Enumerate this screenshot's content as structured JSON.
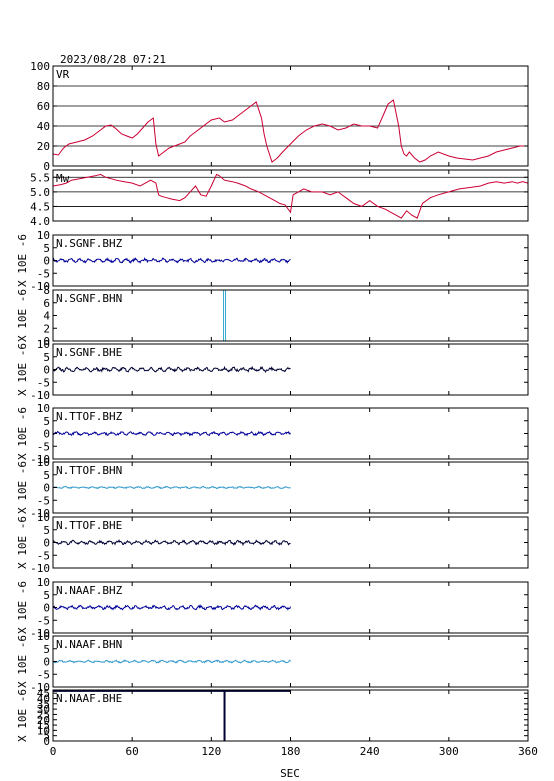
{
  "timestamp": "2023/08/28 07:21",
  "x_axis_label": "SEC",
  "chart_data": [
    {
      "type": "line",
      "panel_label": "VR",
      "line_color": "#cc0033",
      "xlim": [
        0,
        360
      ],
      "ylim": [
        0,
        100
      ],
      "yticks": [
        0,
        20,
        40,
        60,
        80,
        100
      ],
      "grid": true,
      "series": [
        {
          "x": [
            0,
            4,
            8,
            12,
            18,
            24,
            30,
            36,
            40,
            44,
            48,
            52,
            56,
            60,
            64,
            68,
            72,
            76,
            78,
            80,
            82,
            84,
            86,
            88,
            92,
            96,
            100,
            104,
            108,
            114,
            120,
            126,
            130,
            136,
            140,
            144,
            150,
            154,
            158,
            160,
            162,
            164,
            166,
            168,
            170,
            174,
            180,
            186,
            192,
            198,
            204,
            210,
            216,
            222,
            228,
            234,
            240,
            246,
            250,
            254,
            258,
            262,
            264,
            266,
            268,
            270,
            274,
            278,
            282,
            286,
            292,
            300,
            306,
            312,
            318,
            324,
            330,
            336,
            342,
            348,
            354,
            360
          ],
          "y": [
            12,
            11,
            18,
            22,
            24,
            26,
            30,
            36,
            40,
            41,
            37,
            32,
            30,
            28,
            32,
            38,
            44,
            48,
            22,
            10,
            12,
            14,
            16,
            18,
            20,
            22,
            24,
            30,
            34,
            40,
            46,
            48,
            44,
            46,
            50,
            54,
            60,
            64,
            48,
            32,
            20,
            12,
            4,
            6,
            8,
            14,
            22,
            30,
            36,
            40,
            42,
            40,
            36,
            38,
            42,
            40,
            40,
            38,
            50,
            62,
            66,
            40,
            20,
            12,
            10,
            14,
            8,
            4,
            6,
            10,
            14,
            10,
            8,
            7,
            6,
            8,
            10,
            14,
            16,
            18,
            20,
            20
          ]
        }
      ]
    },
    {
      "type": "line",
      "panel_label": "Mw",
      "line_color": "#cc0033",
      "xlim": [
        0,
        360
      ],
      "ylim": [
        4.0,
        5.75
      ],
      "yticks": [
        4.0,
        4.5,
        5.0,
        5.5
      ],
      "ytick_labels": [
        "4.0",
        "4.5",
        "5.0",
        "5.5"
      ],
      "grid": true,
      "series": [
        {
          "x": [
            0,
            6,
            10,
            14,
            20,
            26,
            32,
            36,
            40,
            44,
            48,
            54,
            60,
            66,
            70,
            74,
            78,
            80,
            82,
            86,
            90,
            96,
            100,
            104,
            108,
            112,
            116,
            120,
            124,
            126,
            130,
            136,
            140,
            146,
            150,
            156,
            160,
            164,
            168,
            172,
            176,
            180,
            182,
            186,
            190,
            196,
            204,
            210,
            216,
            222,
            228,
            234,
            240,
            246,
            252,
            256,
            260,
            264,
            268,
            272,
            276,
            280,
            286,
            292,
            300,
            308,
            316,
            324,
            330,
            336,
            342,
            348,
            352,
            356,
            360
          ],
          "y": [
            5.2,
            5.25,
            5.3,
            5.4,
            5.45,
            5.5,
            5.55,
            5.6,
            5.5,
            5.45,
            5.4,
            5.35,
            5.3,
            5.2,
            5.3,
            5.4,
            5.3,
            4.9,
            4.85,
            4.8,
            4.75,
            4.7,
            4.8,
            5.0,
            5.2,
            4.9,
            4.85,
            5.2,
            5.6,
            5.55,
            5.4,
            5.35,
            5.3,
            5.2,
            5.1,
            5.0,
            4.9,
            4.8,
            4.7,
            4.6,
            4.55,
            4.3,
            4.9,
            5.0,
            5.1,
            5.0,
            5.0,
            4.9,
            5.0,
            4.8,
            4.6,
            4.5,
            4.7,
            4.5,
            4.4,
            4.3,
            4.2,
            4.1,
            4.35,
            4.2,
            4.1,
            4.6,
            4.8,
            4.9,
            5.0,
            5.1,
            5.15,
            5.2,
            5.3,
            5.35,
            5.3,
            5.35,
            5.3,
            5.35,
            5.3
          ]
        }
      ]
    },
    {
      "type": "line",
      "panel_label": "N.SGNF.BHZ",
      "ylabel": "X 10E -6",
      "line_color": "#000099",
      "wave_type": "noise",
      "amplitude": 0.8,
      "xlim": [
        0,
        360
      ],
      "data_x_range": [
        0,
        180
      ],
      "ylim": [
        -10,
        10
      ],
      "yticks": [
        -10,
        -5,
        0,
        5,
        10
      ]
    },
    {
      "type": "line",
      "panel_label": "N.SGNF.BHN",
      "ylabel": "X 10E -6",
      "line_color": "#33aacc",
      "wave_type": "spike",
      "spike_x": 130,
      "spike_value": 8,
      "xlim": [
        0,
        360
      ],
      "ylim": [
        0,
        8
      ],
      "yticks": [
        0,
        2,
        4,
        6,
        8
      ]
    },
    {
      "type": "line",
      "panel_label": "N.SGNF.BHE",
      "ylabel": "X 10E -6",
      "line_color": "#000033",
      "wave_type": "noise",
      "amplitude": 0.9,
      "xlim": [
        0,
        360
      ],
      "data_x_range": [
        0,
        180
      ],
      "ylim": [
        -10,
        10
      ],
      "yticks": [
        -10,
        -5,
        0,
        5,
        10
      ]
    },
    {
      "type": "line",
      "panel_label": "N.TTOF.BHZ",
      "ylabel": "X 10E -6",
      "line_color": "#000099",
      "wave_type": "noise",
      "amplitude": 0.7,
      "xlim": [
        0,
        360
      ],
      "data_x_range": [
        0,
        180
      ],
      "ylim": [
        -10,
        10
      ],
      "yticks": [
        -10,
        -5,
        0,
        5,
        10
      ]
    },
    {
      "type": "line",
      "panel_label": "N.TTOF.BHN",
      "ylabel": "X 10E -6",
      "line_color": "#3399cc",
      "wave_type": "noise",
      "amplitude": 0.4,
      "xlim": [
        0,
        360
      ],
      "data_x_range": [
        0,
        180
      ],
      "ylim": [
        -10,
        10
      ],
      "yticks": [
        -10,
        -5,
        0,
        5,
        10
      ]
    },
    {
      "type": "line",
      "panel_label": "N.TTOF.BHE",
      "ylabel": "X 10E -6",
      "line_color": "#000033",
      "wave_type": "noise",
      "amplitude": 0.8,
      "xlim": [
        0,
        360
      ],
      "data_x_range": [
        0,
        180
      ],
      "ylim": [
        -10,
        10
      ],
      "yticks": [
        -10,
        -5,
        0,
        5,
        10
      ]
    },
    {
      "type": "line",
      "panel_label": "N.NAAF.BHZ",
      "ylabel": "X 10E -6",
      "line_color": "#000099",
      "wave_type": "noise",
      "amplitude": 0.8,
      "xlim": [
        0,
        360
      ],
      "data_x_range": [
        0,
        180
      ],
      "ylim": [
        -10,
        10
      ],
      "yticks": [
        -10,
        -5,
        0,
        5,
        10
      ]
    },
    {
      "type": "line",
      "panel_label": "N.NAAF.BHN",
      "ylabel": "X 10E -6",
      "line_color": "#3399cc",
      "wave_type": "noise",
      "amplitude": 0.5,
      "xlim": [
        0,
        360
      ],
      "data_x_range": [
        0,
        180
      ],
      "ylim": [
        -10,
        10
      ],
      "yticks": [
        -10,
        -5,
        0,
        5,
        10
      ]
    },
    {
      "type": "line",
      "panel_label": "N.NAAF.BHE",
      "ylabel": "X 10E -6",
      "line_color": "#000033",
      "wave_type": "step",
      "level": 47,
      "step_x": 130,
      "xlim": [
        0,
        360
      ],
      "data_x_range": [
        0,
        180
      ],
      "ylim": [
        0,
        48
      ],
      "yticks": [
        0,
        5,
        10,
        15,
        20,
        25,
        30,
        35,
        40,
        45
      ]
    }
  ],
  "xticks": [
    0,
    60,
    120,
    180,
    240,
    300,
    360
  ]
}
